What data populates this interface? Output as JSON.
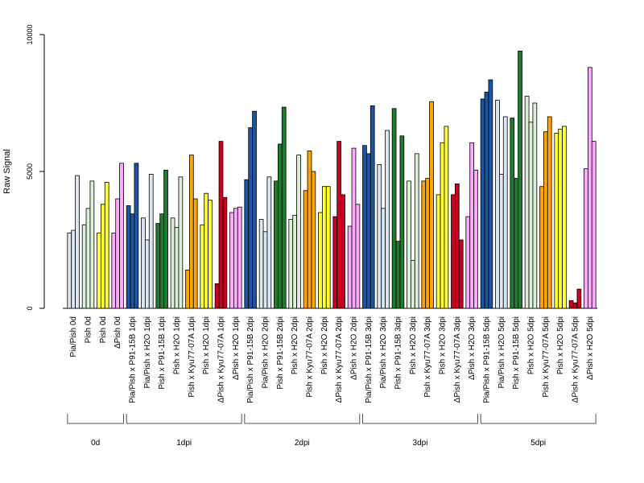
{
  "chart_data": {
    "type": "bar",
    "title": "",
    "xlabel": "",
    "ylabel": "Raw Signal",
    "ylim": [
      0,
      10000
    ],
    "yticks": [
      0,
      5000,
      10000
    ],
    "grid": false,
    "legend": "none",
    "colors": {
      "Pia/Pish": "#dce6f2",
      "Pish": "#ffff33",
      "ΔPish": "#ffaaff",
      "P91-15B": "#1f55a0",
      "Pia/Pish H2O": "#dce6f2",
      "Pish P91-15B": "#217a30",
      "Pish H2O": "#dcefd8",
      "Kyu77-07A": "#ffa500",
      "Pish H2O alt": "#ffff33",
      "ΔPish Kyu77-07A": "#cc0022",
      "ΔPish H2O": "#ffaaff",
      "0d Pish/H2O": "#dcefd8"
    },
    "categories": [
      {
        "label": "Pia/Pish 0d",
        "color": "#dce6f2",
        "values": [
          2750,
          2850,
          4850
        ]
      },
      {
        "label": "Pish 0d",
        "color": "#dcefd8",
        "values": [
          3050,
          3650,
          4650
        ]
      },
      {
        "label": "Pish 0d",
        "color": "#ffff33",
        "values": [
          2750,
          3800,
          4600
        ]
      },
      {
        "label": "ΔPish 0d",
        "color": "#ffaaff",
        "values": [
          2750,
          4000,
          5300
        ]
      },
      {
        "label": "Pia/Pish x P91-15B 1dpi",
        "color": "#1f55a0",
        "values": [
          3750,
          3450,
          5300
        ]
      },
      {
        "label": "Pia/Pish x H2O 1dpi",
        "color": "#dce6f2",
        "values": [
          3300,
          2500,
          4900
        ]
      },
      {
        "label": "Pish x P91-15B 1dpi",
        "color": "#217a30",
        "values": [
          3100,
          3450,
          5050
        ]
      },
      {
        "label": "Pish x H2O 1dpi",
        "color": "#dcefd8",
        "values": [
          3300,
          2950,
          4800
        ]
      },
      {
        "label": "Pish x Kyu77-07A 1dpi",
        "color": "#ffa500",
        "values": [
          1400,
          5600,
          4000
        ]
      },
      {
        "label": "Pish x H2O 1dpi",
        "color": "#ffff33",
        "values": [
          3050,
          4200,
          3950
        ]
      },
      {
        "label": "ΔPish x Kyu77-07A 1dpi",
        "color": "#cc0022",
        "values": [
          900,
          6100,
          4050
        ]
      },
      {
        "label": "ΔPish x H2O 1dpi",
        "color": "#ffaaff",
        "values": [
          3500,
          3650,
          3700
        ]
      },
      {
        "label": "Pia/Pish x P91-15B 2dpi",
        "color": "#1f55a0",
        "values": [
          4700,
          6600,
          7200
        ]
      },
      {
        "label": "Pia/Pish x H2O 2dpi",
        "color": "#dce6f2",
        "values": [
          3250,
          2800,
          4800
        ]
      },
      {
        "label": "Pish x P91-15B 2dpi",
        "color": "#217a30",
        "values": [
          4650,
          6000,
          7350
        ]
      },
      {
        "label": "Pish x H2O 2dpi",
        "color": "#dcefd8",
        "values": [
          3250,
          3400,
          5600
        ]
      },
      {
        "label": "Pish x Kyu77-07A 2dpi",
        "color": "#ffa500",
        "values": [
          4300,
          5750,
          5000
        ]
      },
      {
        "label": "Pish x H2O 2dpi",
        "color": "#ffff33",
        "values": [
          3500,
          4450,
          4450
        ]
      },
      {
        "label": "ΔPish x Kyu77-07A 2dpi",
        "color": "#cc0022",
        "values": [
          3350,
          6100,
          4150
        ]
      },
      {
        "label": "ΔPish x H2O 2dpi",
        "color": "#ffaaff",
        "values": [
          3000,
          5850,
          3800
        ]
      },
      {
        "label": "Pia/Pish x P91-15B 3dpi",
        "color": "#1f55a0",
        "values": [
          5950,
          5650,
          7400
        ]
      },
      {
        "label": "Pia/Pish x H2O 3dpi",
        "color": "#dce6f2",
        "values": [
          5250,
          3650,
          6500
        ]
      },
      {
        "label": "Pish x P91-15B 3dpi",
        "color": "#217a30",
        "values": [
          7300,
          2450,
          6300
        ]
      },
      {
        "label": "Pish x H2O 3dpi",
        "color": "#dcefd8",
        "values": [
          4650,
          1750,
          5650
        ]
      },
      {
        "label": "Pish x Kyu77-07A 3dpi",
        "color": "#ffa500",
        "values": [
          4650,
          4750,
          7550
        ]
      },
      {
        "label": "Pish x H2O 3dpi",
        "color": "#ffff33",
        "values": [
          4150,
          6050,
          6650
        ]
      },
      {
        "label": "ΔPish x Kyu77-07A 3dpi",
        "color": "#cc0022",
        "values": [
          4150,
          4550,
          2500
        ]
      },
      {
        "label": "ΔPish x H2O 3dpi",
        "color": "#ffaaff",
        "values": [
          3350,
          6050,
          5050
        ]
      },
      {
        "label": "Pia/Pish x P91-15B 5dpi",
        "color": "#1f55a0",
        "values": [
          7650,
          7900,
          8350
        ]
      },
      {
        "label": "Pia/Pish x H2O 5dpi",
        "color": "#dce6f2",
        "values": [
          7600,
          4900,
          7000
        ]
      },
      {
        "label": "Pish x P91-15B 5dpi",
        "color": "#217a30",
        "values": [
          6950,
          4750,
          9400
        ]
      },
      {
        "label": "Pish x H2O 5dpi",
        "color": "#dcefd8",
        "values": [
          7750,
          6800,
          7500
        ]
      },
      {
        "label": "Pish x Kyu77-07A 5dpi",
        "color": "#ffa500",
        "values": [
          4450,
          6450,
          7000
        ]
      },
      {
        "label": "Pish x H2O 5dpi",
        "color": "#ffff33",
        "values": [
          6400,
          6550,
          6650
        ]
      },
      {
        "label": "ΔPish x Kyu77-07A 5dpi",
        "color": "#cc0022",
        "values": [
          280,
          200,
          700
        ]
      },
      {
        "label": "ΔPish x H2O 5dpi",
        "color": "#ffaaff",
        "values": [
          5100,
          8800,
          6100
        ]
      }
    ],
    "groups": [
      {
        "label": "0d",
        "first": 0,
        "last": 3
      },
      {
        "label": "1dpi",
        "first": 4,
        "last": 11
      },
      {
        "label": "2dpi",
        "first": 12,
        "last": 19
      },
      {
        "label": "3dpi",
        "first": 20,
        "last": 27
      },
      {
        "label": "5dpi",
        "first": 28,
        "last": 35
      }
    ]
  }
}
